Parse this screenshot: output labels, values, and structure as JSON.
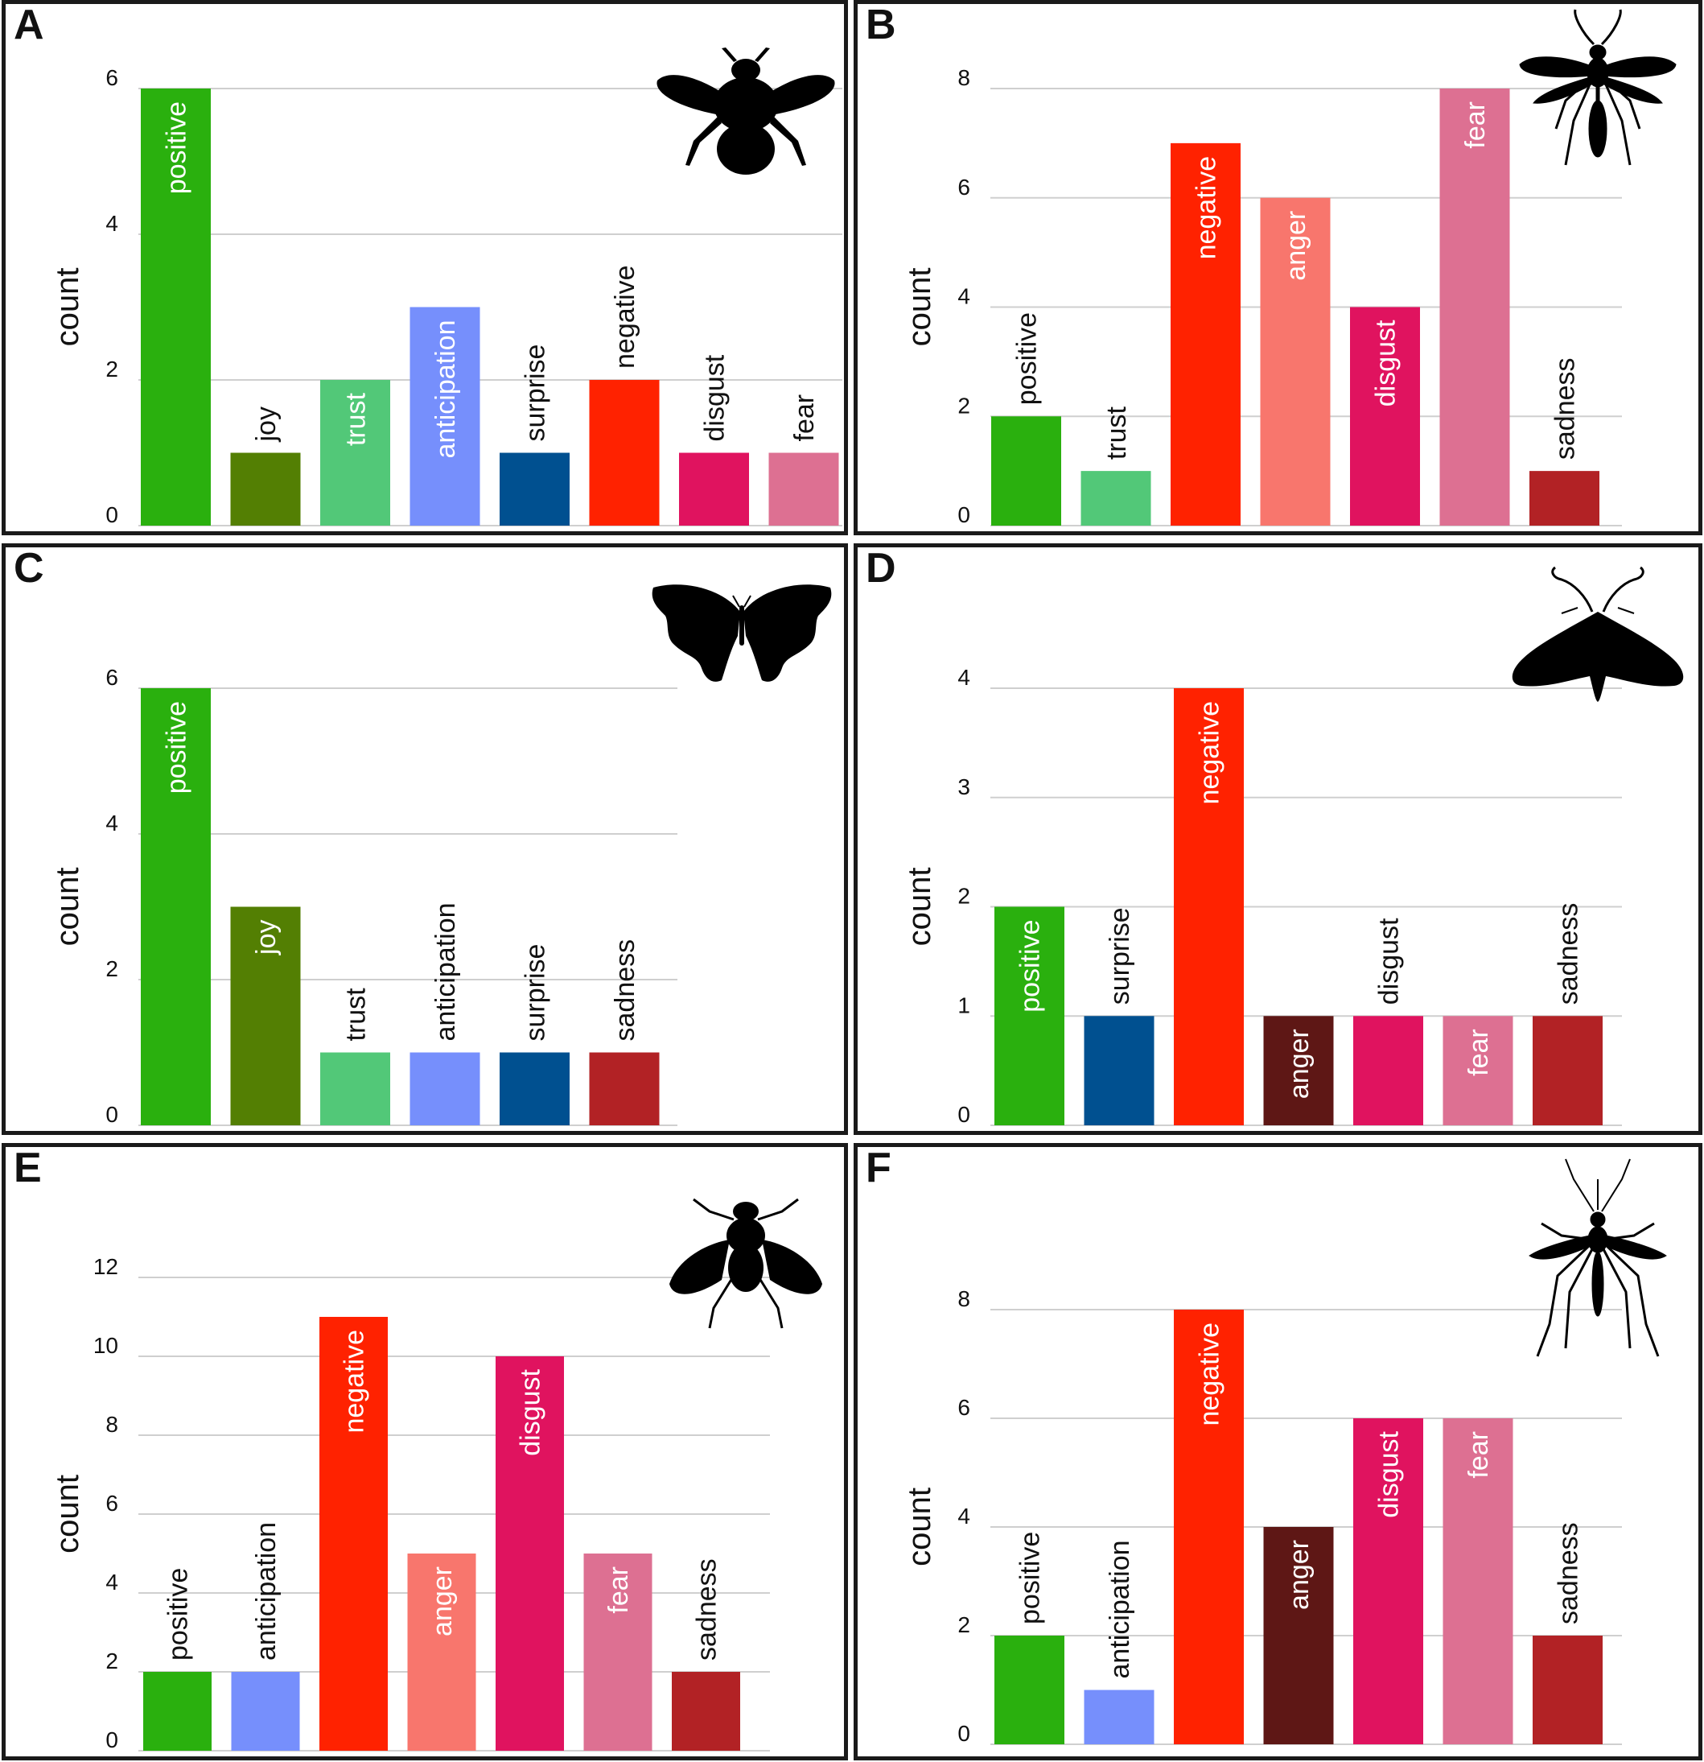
{
  "colors": {
    "positive": "#2ab00e",
    "joy": "#537f03",
    "trust": "#52c878",
    "anticipation": "#768ffc",
    "surprise": "#005090",
    "negative": "#ff2200",
    "anger_light": "#f8766d",
    "anger_dark": "#5e1715",
    "disgust": "#e0135f",
    "fear": "#dd7092",
    "sadness": "#b22225",
    "grid": "#cfcfcf",
    "text": "#111111",
    "label_inside": "#ffffff"
  },
  "chart_data": [
    {
      "panel": "A",
      "type": "bar",
      "ylabel": "count",
      "insect": "bumblebee-icon",
      "yticks": [
        0,
        2,
        4,
        6
      ],
      "ylim": [
        0,
        6
      ],
      "categories": [
        "positive",
        "joy",
        "trust",
        "anticipation",
        "surprise",
        "negative",
        "disgust",
        "fear"
      ],
      "values": [
        6,
        1,
        2,
        3,
        1,
        2,
        1,
        1
      ],
      "bar_colors": [
        "positive",
        "joy",
        "trust",
        "anticipation",
        "surprise",
        "negative",
        "disgust",
        "fear"
      ]
    },
    {
      "panel": "B",
      "type": "bar",
      "ylabel": "count",
      "insect": "wasp-icon",
      "yticks": [
        0,
        2,
        4,
        6,
        8
      ],
      "ylim": [
        0,
        8
      ],
      "categories": [
        "positive",
        "trust",
        "negative",
        "anger",
        "disgust",
        "fear",
        "sadness"
      ],
      "values": [
        2,
        1,
        7,
        6,
        4,
        8,
        1
      ],
      "bar_colors": [
        "positive",
        "trust",
        "negative",
        "anger_light",
        "disgust",
        "fear",
        "sadness"
      ]
    },
    {
      "panel": "C",
      "type": "bar",
      "ylabel": "count",
      "insect": "butterfly-icon",
      "yticks": [
        0,
        2,
        4,
        6
      ],
      "ylim": [
        0,
        6
      ],
      "categories": [
        "positive",
        "joy",
        "trust",
        "anticipation",
        "surprise",
        "sadness"
      ],
      "values": [
        6,
        3,
        1,
        1,
        1,
        1
      ],
      "bar_colors": [
        "positive",
        "joy",
        "trust",
        "anticipation",
        "surprise",
        "sadness"
      ]
    },
    {
      "panel": "D",
      "type": "bar",
      "ylabel": "count",
      "insect": "moth-icon",
      "yticks": [
        0,
        1,
        2,
        3,
        4
      ],
      "ylim": [
        0,
        4
      ],
      "categories": [
        "positive",
        "surprise",
        "negative",
        "anger",
        "disgust",
        "fear",
        "sadness"
      ],
      "values": [
        2,
        1,
        4,
        1,
        1,
        1,
        1
      ],
      "bar_colors": [
        "positive",
        "surprise",
        "negative",
        "anger_dark",
        "disgust",
        "fear",
        "sadness"
      ]
    },
    {
      "panel": "E",
      "type": "bar",
      "ylabel": "count",
      "insect": "fly-icon",
      "yticks": [
        0,
        2,
        4,
        6,
        8,
        10,
        12
      ],
      "ylim": [
        0,
        12
      ],
      "categories": [
        "positive",
        "anticipation",
        "negative",
        "anger",
        "disgust",
        "fear",
        "sadness"
      ],
      "values": [
        2,
        2,
        11,
        5,
        10,
        5,
        2
      ],
      "bar_colors": [
        "positive",
        "anticipation",
        "negative",
        "anger_light",
        "disgust",
        "fear",
        "sadness"
      ]
    },
    {
      "panel": "F",
      "type": "bar",
      "ylabel": "count",
      "insect": "mosquito-icon",
      "yticks": [
        0,
        2,
        4,
        6,
        8
      ],
      "ylim": [
        0,
        8
      ],
      "categories": [
        "positive",
        "anticipation",
        "negative",
        "anger",
        "disgust",
        "fear",
        "sadness"
      ],
      "values": [
        2,
        1,
        8,
        4,
        6,
        6,
        2
      ],
      "bar_colors": [
        "positive",
        "anticipation",
        "negative",
        "anger_dark",
        "disgust",
        "fear",
        "sadness"
      ]
    }
  ]
}
